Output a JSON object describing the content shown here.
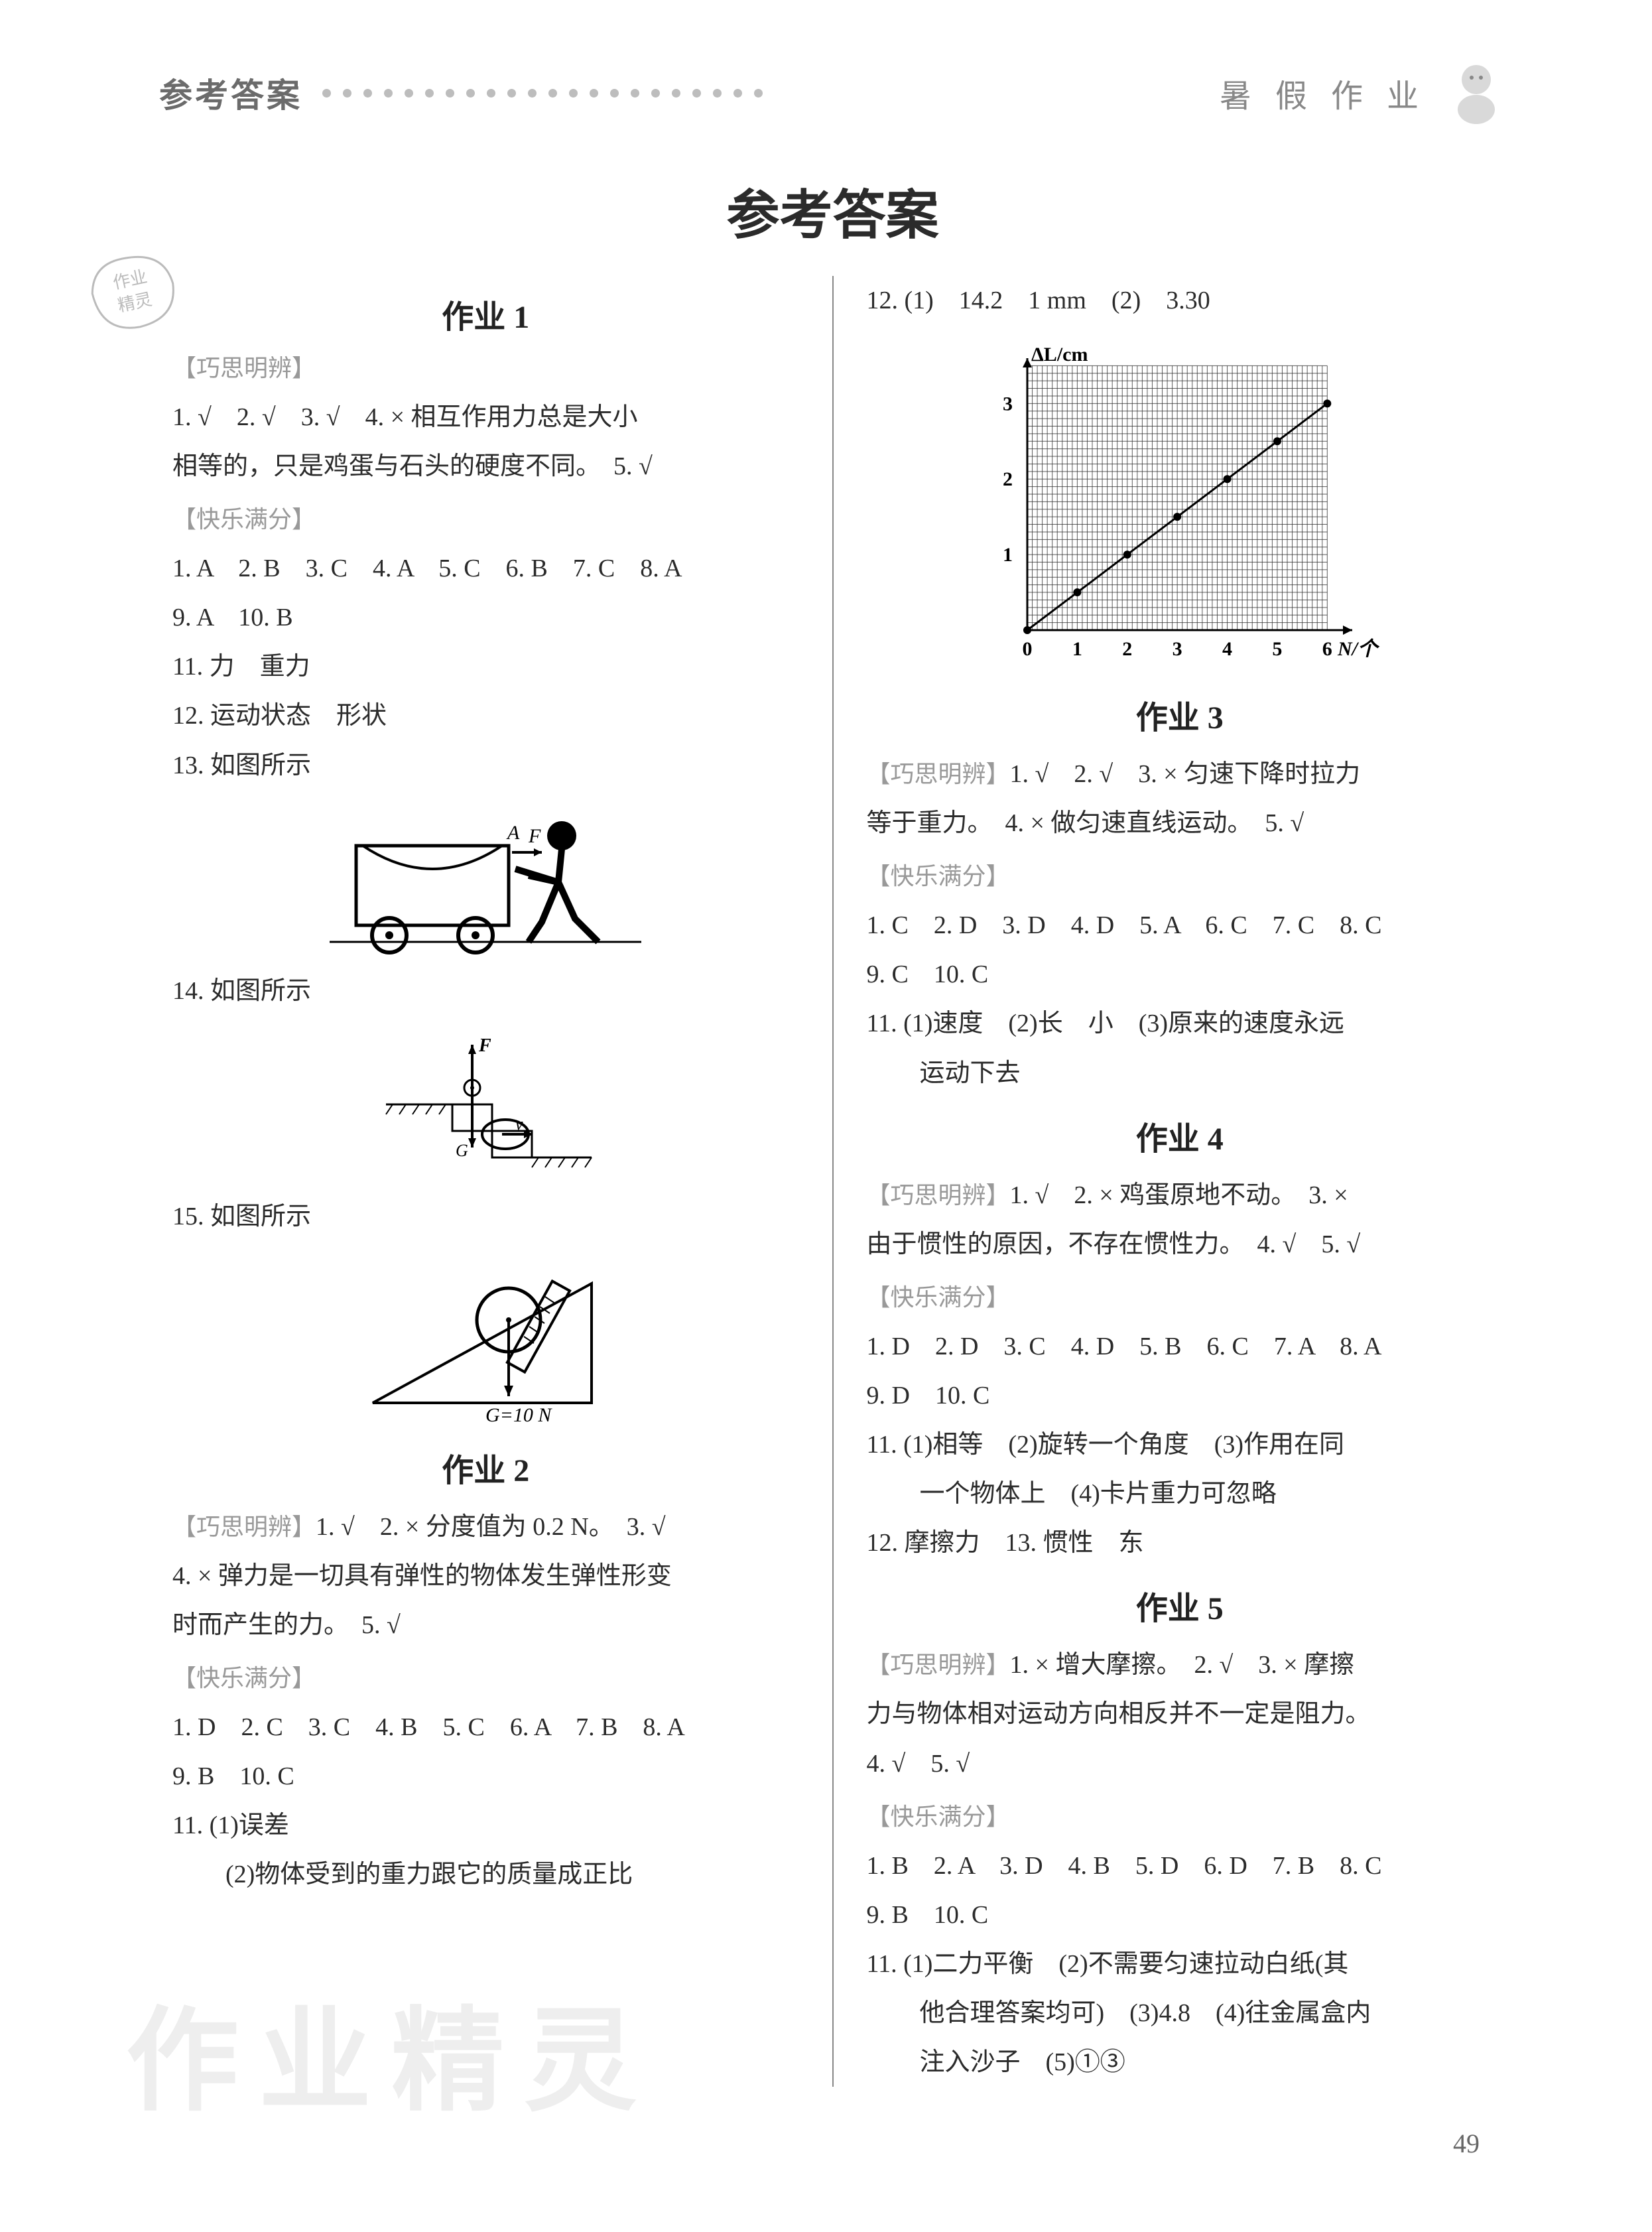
{
  "header": {
    "left": "参考答案",
    "right": "暑 假 作 业",
    "dot_color": "#bdbdbd",
    "dot_count": 22
  },
  "main_title": "参考答案",
  "page_number": "49",
  "watermark": "作业精灵",
  "stamp_lines": [
    "作业",
    "精灵"
  ],
  "left_col": {
    "hw1": {
      "title": "作业 1",
      "sect1_label": "【巧思明辨】",
      "sect1_line1": "1. √　2. √　3. √　4. × 相互作用力总是大小",
      "sect1_line2": "相等的，只是鸡蛋与石头的硬度不同。　5. √",
      "sect2_label": "【快乐满分】",
      "mc1": "1. A　2. B　3. C　4. A　5. C　6. B　7. C　8. A",
      "mc2": "9. A　10. B",
      "q11": "11. 力　重力",
      "q12": "12. 运动状态　形状",
      "q13": "13. 如图所示",
      "q14": "14. 如图所示",
      "q15": "15. 如图所示",
      "fig15_label": "G=10 N"
    },
    "hw2": {
      "title": "作业 2",
      "sect1_label": "【巧思明辨】",
      "sect1_inline": "1. √　2. × 分度值为 0.2 N。　3. √",
      "sect1_line2": "4. × 弹力是一切具有弹性的物体发生弹性形变",
      "sect1_line3": "时而产生的力。　5. √",
      "sect2_label": "【快乐满分】",
      "mc1": "1. D　2. C　3. C　4. B　5. C　6. A　7. B　8. A",
      "mc2": "9. B　10. C",
      "q11a": "11. (1)误差",
      "q11b": "(2)物体受到的重力跟它的质量成正比"
    }
  },
  "right_col": {
    "q12": "12. (1)　14.2　1 mm　(2)　3.30",
    "chart": {
      "type": "line",
      "y_label": "ΔL/cm",
      "x_label": "N/个",
      "xlim": [
        0,
        6.5
      ],
      "ylim": [
        0,
        3.6
      ],
      "xticks": [
        0,
        1,
        2,
        3,
        4,
        5,
        6
      ],
      "yticks": [
        0,
        1,
        2,
        3
      ],
      "points": [
        [
          0,
          0
        ],
        [
          1,
          0.5
        ],
        [
          2,
          1.0
        ],
        [
          3,
          1.5
        ],
        [
          4,
          2.0
        ],
        [
          5,
          2.5
        ],
        [
          6,
          3.0
        ]
      ],
      "grid_minor": 0.1,
      "grid_color": "#333333",
      "line_color": "#000000",
      "axis_color": "#000000",
      "bg_color": "#ffffff",
      "label_fontsize": 30,
      "tick_fontsize": 30,
      "marker": "circle",
      "marker_size": 6,
      "line_width": 3
    },
    "hw3": {
      "title": "作业 3",
      "sect1_label": "【巧思明辨】",
      "sect1_inline": "1. √　2. √　3. × 匀速下降时拉力",
      "sect1_line2": "等于重力。　4. × 做匀速直线运动。　5. √",
      "sect2_label": "【快乐满分】",
      "mc1": "1. C　2. D　3. D　4. D　5. A　6. C　7. C　8. C",
      "mc2": "9. C　10. C",
      "q11a": "11. (1)速度　(2)长　小　(3)原来的速度永远",
      "q11b": "运动下去"
    },
    "hw4": {
      "title": "作业 4",
      "sect1_label": "【巧思明辨】",
      "sect1_inline": "1. √　2. × 鸡蛋原地不动。　3. ×",
      "sect1_line2": "由于惯性的原因，不存在惯性力。　4. √　5. √",
      "sect2_label": "【快乐满分】",
      "mc1": "1. D　2. D　3. C　4. D　5. B　6. C　7. A　8. A",
      "mc2": "9. D　10. C",
      "q11a": "11. (1)相等　(2)旋转一个角度　(3)作用在同",
      "q11b": "一个物体上　(4)卡片重力可忽略",
      "q12": "12. 摩擦力　13. 惯性　东"
    },
    "hw5": {
      "title": "作业 5",
      "sect1_label": "【巧思明辨】",
      "sect1_inline": "1. × 增大摩擦。　2. √　3. × 摩擦",
      "sect1_line2": "力与物体相对运动方向相反并不一定是阻力。",
      "sect1_line3": "4. √　5. √",
      "sect2_label": "【快乐满分】",
      "mc1": "1. B　2. A　3. D　4. B　5. D　6. D　7. B　8. C",
      "mc2": "9. B　10. C",
      "q11a": "11. (1)二力平衡　(2)不需要匀速拉动白纸(其",
      "q11b": "他合理答案均可)　(3)4.8　(4)往金属盒内",
      "q11c": "注入沙子　(5)①③"
    }
  }
}
